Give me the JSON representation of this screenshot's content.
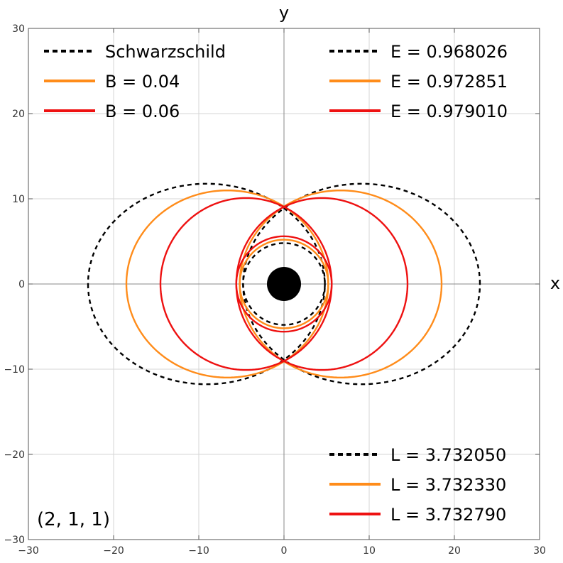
{
  "chart_data": {
    "type": "line",
    "xlabel": "x",
    "ylabel": "y",
    "xlim": [
      -30,
      30
    ],
    "ylim": [
      -30,
      30
    ],
    "x_ticks": [
      -30,
      -20,
      -10,
      0,
      10,
      20,
      30
    ],
    "y_ticks": [
      -30,
      -20,
      -10,
      0,
      10,
      20,
      30
    ],
    "x_tick_labels": [
      "−30",
      "−20",
      "−10",
      "0",
      "10",
      "20",
      "30"
    ],
    "y_tick_labels": [
      "−30",
      "−20",
      "−10",
      "0",
      "10",
      "20",
      "30"
    ],
    "grid": true,
    "annotation": "(2, 1, 1)",
    "black_hole": {
      "center": [
        0,
        0
      ],
      "radius": 2
    },
    "legends": {
      "top-left": [
        "Schwarzschild",
        "B = 0.04",
        "B = 0.06"
      ],
      "top-right": [
        "E = 0.968026",
        "E = 0.972851",
        "E = 0.979010"
      ],
      "bottom-right": [
        "L = 3.732050",
        "L = 3.732330",
        "L = 3.732790"
      ]
    },
    "series": [
      {
        "name": "Schwarzschild",
        "color": "#000000",
        "dashed": true,
        "r_min": 4.8,
        "r_max": 23.0,
        "lobe_angles_deg": [
          0,
          180
        ]
      },
      {
        "name": "B = 0.04",
        "color": "#ff8c1a",
        "dashed": false,
        "r_min": 5.2,
        "r_max": 18.5,
        "lobe_angles_deg": [
          0,
          180
        ]
      },
      {
        "name": "B = 0.06",
        "color": "#ee1111",
        "dashed": false,
        "r_min": 5.6,
        "r_max": 14.5,
        "lobe_angles_deg": [
          0,
          180
        ]
      }
    ]
  }
}
